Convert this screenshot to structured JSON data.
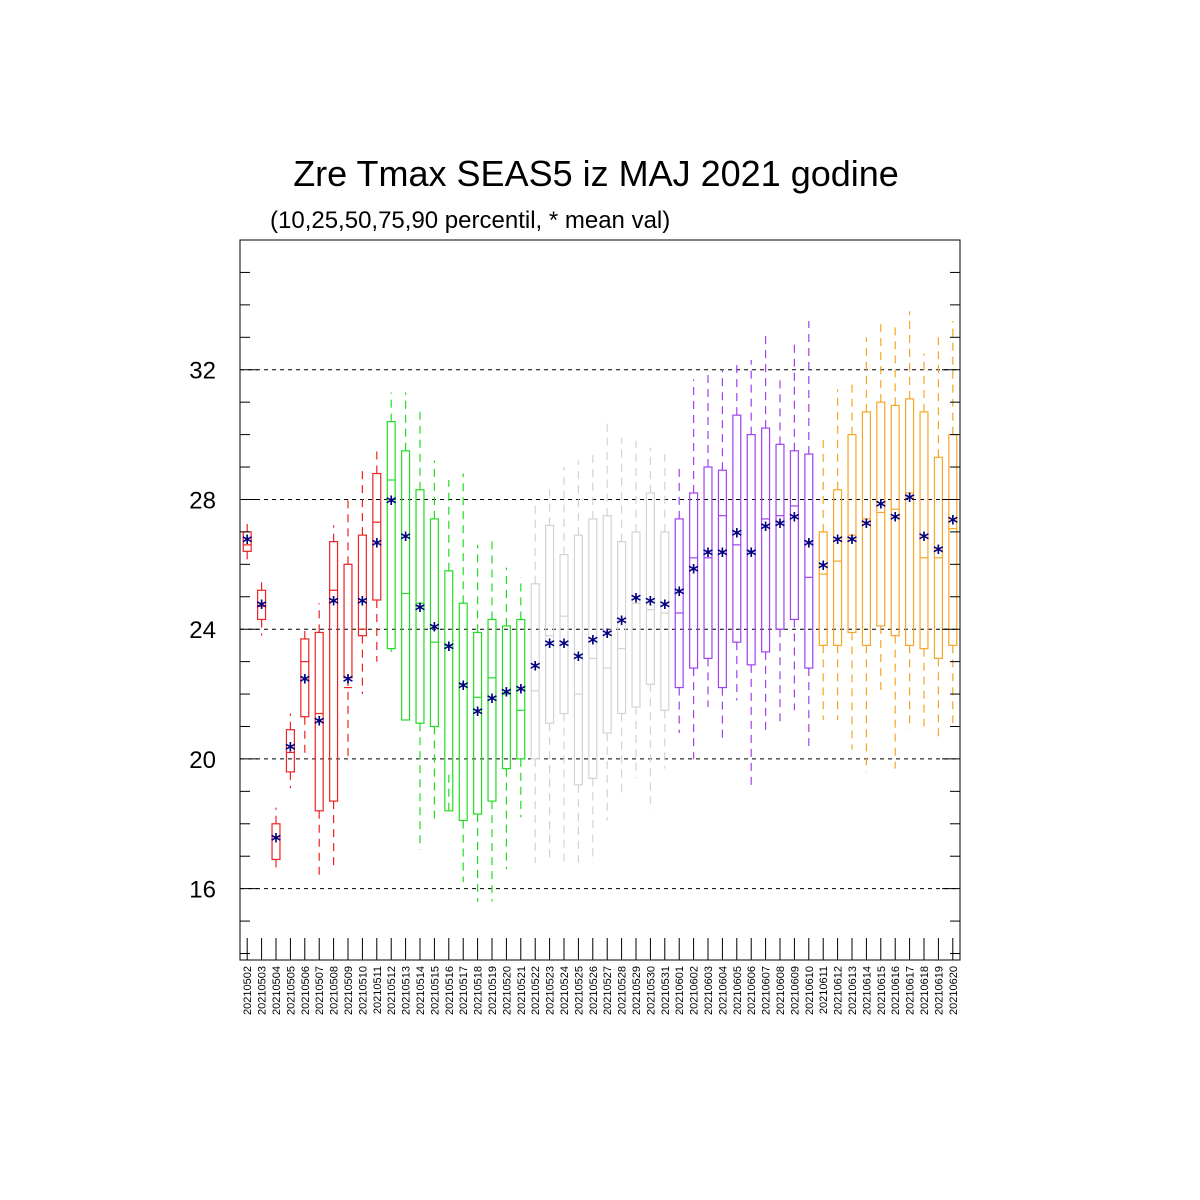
{
  "chart_data": {
    "type": "boxplot",
    "title": "Zre Tmax SEAS5 iz MAJ 2021 godine",
    "subtitle": "(10,25,50,75,90 percentil, * mean val)",
    "xlabel": "",
    "ylabel": "",
    "ylim": [
      13.8,
      36
    ],
    "yticks": [
      16,
      20,
      24,
      28,
      32
    ],
    "grid_y": true,
    "mean_marker": "*",
    "colors": {
      "red": "#ee2222",
      "green": "#22dd22",
      "gray": "#d3d3d3",
      "purple": "#a040f0",
      "orange": "#f5a623",
      "mean": "#000080",
      "grid": "#000000"
    },
    "categories": [
      "20210502",
      "20210503",
      "20210504",
      "20210505",
      "20210506",
      "20210507",
      "20210508",
      "20210509",
      "20210510",
      "20210511",
      "20210512",
      "20210513",
      "20210514",
      "20210515",
      "20210516",
      "20210517",
      "20210518",
      "20210519",
      "20210520",
      "20210521",
      "20210522",
      "20210523",
      "20210524",
      "20210525",
      "20210526",
      "20210527",
      "20210528",
      "20210529",
      "20210530",
      "20210531",
      "20210601",
      "20210602",
      "20210603",
      "20210604",
      "20210605",
      "20210606",
      "20210607",
      "20210608",
      "20210609",
      "20210610",
      "20210611",
      "20210612",
      "20210613",
      "20210614",
      "20210615",
      "20210616",
      "20210617",
      "20210618",
      "20210619",
      "20210620"
    ],
    "group_color": [
      "red",
      "red",
      "red",
      "red",
      "red",
      "red",
      "red",
      "red",
      "red",
      "red",
      "green",
      "green",
      "green",
      "green",
      "green",
      "green",
      "green",
      "green",
      "green",
      "green",
      "gray",
      "gray",
      "gray",
      "gray",
      "gray",
      "gray",
      "gray",
      "gray",
      "gray",
      "gray",
      "purple",
      "purple",
      "purple",
      "purple",
      "purple",
      "purple",
      "purple",
      "purple",
      "purple",
      "purple",
      "orange",
      "orange",
      "orange",
      "orange",
      "orange",
      "orange",
      "orange",
      "orange",
      "orange",
      "orange"
    ],
    "p10": [
      26.1,
      23.8,
      16.5,
      19.1,
      20.0,
      16.4,
      16.7,
      19.9,
      22.0,
      23.0,
      23.3,
      21.2,
      17.2,
      18.0,
      19.6,
      16.2,
      15.6,
      15.6,
      16.6,
      18.2,
      16.8,
      16.9,
      16.7,
      16.8,
      16.8,
      18.1,
      18.8,
      19.4,
      18.4,
      19.7,
      20.8,
      20.0,
      21.6,
      20.6,
      21.8,
      19.1,
      20.8,
      21.0,
      21.5,
      20.4,
      21.2,
      21.2,
      20.3,
      19.6,
      22.0,
      19.7,
      20.9,
      21.0,
      20.6,
      21.0
    ],
    "p25": [
      26.4,
      24.3,
      16.9,
      19.6,
      21.3,
      18.4,
      18.7,
      22.5,
      23.8,
      24.9,
      23.4,
      21.2,
      21.1,
      21.0,
      18.4,
      18.1,
      18.3,
      18.7,
      19.7,
      20.0,
      20.0,
      21.1,
      21.4,
      19.2,
      19.4,
      20.8,
      21.4,
      21.6,
      22.3,
      21.5,
      22.2,
      22.8,
      23.1,
      22.2,
      23.6,
      22.9,
      23.3,
      24.0,
      24.3,
      22.8,
      23.5,
      23.5,
      23.9,
      23.5,
      24.1,
      23.8,
      23.5,
      23.4,
      23.1,
      23.5
    ],
    "p50": [
      26.6,
      24.7,
      17.6,
      20.2,
      23.0,
      21.4,
      25.2,
      22.2,
      24.0,
      27.3,
      28.6,
      25.1,
      24.8,
      23.6,
      23.5,
      22.3,
      21.9,
      22.5,
      22.0,
      21.5,
      22.1,
      23.8,
      24.4,
      22.0,
      23.1,
      22.8,
      23.4,
      24.8,
      24.6,
      24.5,
      24.5,
      26.2,
      26.2,
      27.5,
      26.6,
      26.4,
      27.4,
      27.5,
      27.8,
      25.6,
      25.7,
      26.1,
      26.9,
      27.4,
      27.6,
      27.7,
      28.2,
      26.2,
      26.2,
      27.1
    ],
    "p75": [
      27.0,
      25.2,
      18.0,
      20.9,
      23.7,
      23.9,
      26.7,
      26.0,
      26.9,
      28.8,
      30.4,
      29.5,
      28.3,
      27.4,
      25.8,
      24.8,
      23.9,
      24.3,
      24.1,
      24.3,
      25.4,
      27.2,
      26.3,
      26.9,
      27.4,
      27.5,
      26.7,
      27.0,
      28.2,
      27.0,
      27.4,
      28.2,
      29.0,
      28.9,
      30.6,
      30.0,
      30.2,
      29.7,
      29.5,
      29.4,
      27.0,
      28.3,
      30.0,
      30.7,
      31.0,
      30.9,
      31.1,
      30.7,
      29.3,
      30.0
    ],
    "p90": [
      27.3,
      25.6,
      18.5,
      21.4,
      24.0,
      24.8,
      27.2,
      28.0,
      28.9,
      29.6,
      31.3,
      31.3,
      30.8,
      29.2,
      28.6,
      28.8,
      26.6,
      26.8,
      25.9,
      25.6,
      27.9,
      28.4,
      29.0,
      29.2,
      29.4,
      30.5,
      29.9,
      29.8,
      29.6,
      29.4,
      29.0,
      31.7,
      31.9,
      32.0,
      32.3,
      32.3,
      33.1,
      31.7,
      32.8,
      33.5,
      30.0,
      31.4,
      31.7,
      33.0,
      33.5,
      33.4,
      33.8,
      32.5,
      33.0,
      33.5
    ],
    "mean": [
      26.7,
      24.7,
      17.5,
      20.3,
      22.4,
      21.1,
      24.8,
      22.4,
      24.8,
      26.6,
      27.9,
      26.8,
      24.6,
      24.0,
      23.4,
      22.2,
      21.4,
      21.8,
      22.0,
      22.1,
      22.8,
      23.5,
      23.5,
      23.1,
      23.6,
      23.8,
      24.2,
      24.9,
      24.8,
      24.7,
      25.1,
      25.8,
      26.3,
      26.3,
      26.9,
      26.3,
      27.1,
      27.2,
      27.4,
      26.6,
      25.9,
      26.7,
      26.7,
      27.2,
      27.8,
      27.4,
      28.0,
      26.8,
      26.4,
      27.3
    ]
  }
}
